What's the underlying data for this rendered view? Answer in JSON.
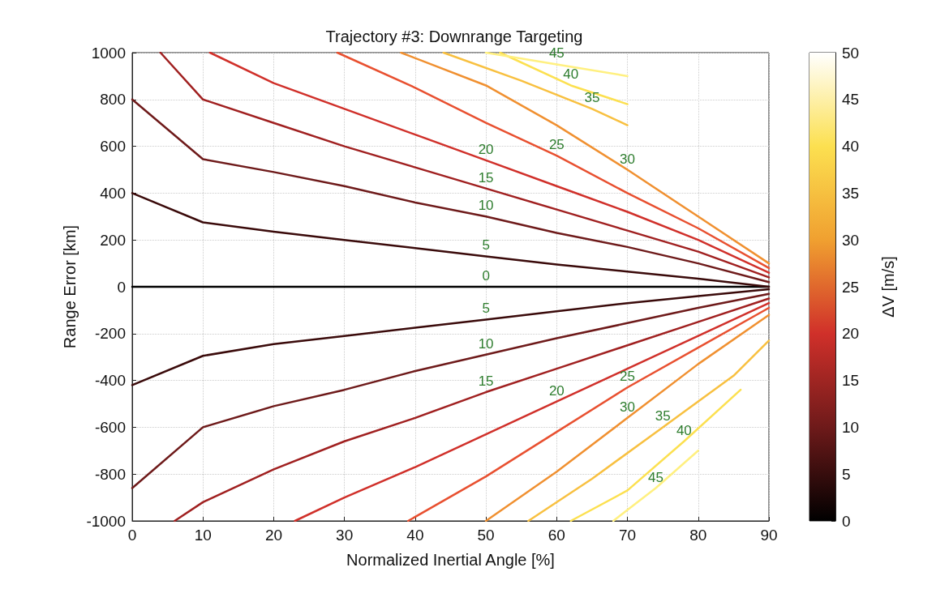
{
  "chart_data": {
    "type": "line",
    "title": "Trajectory #3: Downrange Targeting",
    "xlabel": "Normalized Inertial Angle [%]",
    "ylabel": "Range Error [km]",
    "clabel": "ΔV [m/s]",
    "clim": [
      0,
      50
    ],
    "cticks": [
      0,
      5,
      10,
      15,
      20,
      25,
      30,
      35,
      40,
      45,
      50
    ],
    "xlim": [
      0,
      90
    ],
    "xticks": [
      0,
      10,
      20,
      30,
      40,
      50,
      60,
      70,
      80,
      90
    ],
    "ylim": [
      -1000,
      1000
    ],
    "yticks": [
      -1000,
      -800,
      -600,
      -400,
      -200,
      0,
      200,
      400,
      600,
      800,
      1000
    ],
    "grid": true,
    "legend": false,
    "marker": "none",
    "line_style": "solid",
    "series": [
      {
        "name": "0",
        "color": "#000000",
        "x": [
          0,
          10,
          20,
          30,
          40,
          50,
          60,
          70,
          80,
          90
        ],
        "values": [
          0,
          0,
          0,
          0,
          0,
          0,
          0,
          0,
          0,
          0
        ]
      },
      {
        "name": "5",
        "color": "#3a0a0a",
        "x": [
          0,
          10,
          20,
          30,
          40,
          50,
          60,
          70,
          80,
          90
        ],
        "values": [
          400,
          275,
          235,
          200,
          165,
          130,
          95,
          65,
          35,
          0
        ]
      },
      {
        "name": "5",
        "color": "#3a0a0a",
        "x": [
          0,
          10,
          20,
          30,
          40,
          50,
          60,
          70,
          80,
          90
        ],
        "values": [
          -420,
          -295,
          -245,
          -210,
          -175,
          -140,
          -105,
          -70,
          -40,
          -10
        ]
      },
      {
        "name": "10",
        "color": "#6e1a1a",
        "x": [
          0,
          10,
          20,
          30,
          40,
          50,
          60,
          70,
          80,
          90
        ],
        "values": [
          800,
          545,
          490,
          430,
          360,
          300,
          230,
          170,
          100,
          20
        ]
      },
      {
        "name": "10",
        "color": "#6e1a1a",
        "x": [
          0,
          10,
          20,
          30,
          40,
          50,
          60,
          70,
          80,
          90
        ],
        "values": [
          -860,
          -600,
          -510,
          -440,
          -360,
          -290,
          -220,
          -155,
          -90,
          -30
        ]
      },
      {
        "name": "15",
        "color": "#a02020",
        "x": [
          4,
          10,
          20,
          30,
          40,
          50,
          60,
          70,
          80,
          90
        ],
        "values": [
          1000,
          800,
          700,
          600,
          510,
          420,
          330,
          240,
          150,
          40
        ]
      },
      {
        "name": "15",
        "color": "#a02020",
        "x": [
          6,
          10,
          20,
          30,
          40,
          50,
          60,
          70,
          80,
          90
        ],
        "values": [
          -1000,
          -920,
          -780,
          -660,
          -560,
          -450,
          -350,
          -250,
          -150,
          -50
        ]
      },
      {
        "name": "20",
        "color": "#d0302a",
        "x": [
          11,
          20,
          30,
          40,
          50,
          60,
          70,
          80,
          90
        ],
        "values": [
          1000,
          870,
          760,
          650,
          540,
          430,
          320,
          200,
          60
        ]
      },
      {
        "name": "20",
        "color": "#d0302a",
        "x": [
          23,
          30,
          40,
          50,
          60,
          70,
          80,
          90
        ],
        "values": [
          -1000,
          -900,
          -770,
          -630,
          -490,
          -350,
          -210,
          -70
        ]
      },
      {
        "name": "25",
        "color": "#e85030",
        "x": [
          29,
          40,
          50,
          60,
          70,
          80,
          90
        ],
        "values": [
          1000,
          850,
          700,
          560,
          400,
          250,
          80
        ]
      },
      {
        "name": "25",
        "color": "#e85030",
        "x": [
          39,
          50,
          60,
          70,
          80,
          90
        ],
        "values": [
          -1000,
          -810,
          -620,
          -430,
          -260,
          -90
        ]
      },
      {
        "name": "30",
        "color": "#f09030",
        "x": [
          38,
          50,
          60,
          70,
          80,
          90
        ],
        "values": [
          1000,
          860,
          690,
          500,
          300,
          100
        ]
      },
      {
        "name": "30",
        "color": "#f09030",
        "x": [
          50,
          60,
          70,
          80,
          90
        ],
        "values": [
          -1000,
          -790,
          -560,
          -330,
          -120
        ]
      },
      {
        "name": "35",
        "color": "#f8c040",
        "x": [
          44,
          55,
          65,
          70
        ],
        "values": [
          1000,
          880,
          760,
          690
        ]
      },
      {
        "name": "35",
        "color": "#f8c040",
        "x": [
          56,
          65,
          75,
          85,
          90
        ],
        "values": [
          -1000,
          -820,
          -600,
          -380,
          -230
        ]
      },
      {
        "name": "40",
        "color": "#fce050",
        "x": [
          52,
          62,
          70
        ],
        "values": [
          1000,
          860,
          780
        ]
      },
      {
        "name": "40",
        "color": "#fce050",
        "x": [
          62,
          70,
          78,
          86
        ],
        "values": [
          -1000,
          -870,
          -660,
          -440
        ]
      },
      {
        "name": "45",
        "color": "#fff080",
        "x": [
          50,
          60,
          70
        ],
        "values": [
          1000,
          950,
          900
        ]
      },
      {
        "name": "45",
        "color": "#fff080",
        "x": [
          68,
          74,
          80
        ],
        "values": [
          -1000,
          -860,
          -700
        ]
      }
    ]
  }
}
